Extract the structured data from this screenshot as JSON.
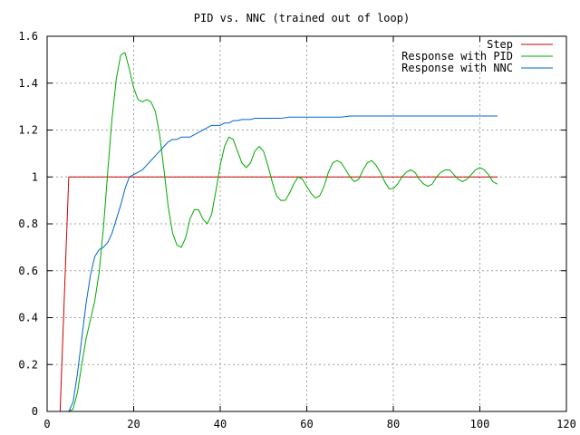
{
  "chart_data": {
    "type": "line",
    "title": "PID vs. NNC (trained out of loop)",
    "xlabel": "",
    "ylabel": "",
    "xlim": [
      0,
      120
    ],
    "ylim": [
      0,
      1.6
    ],
    "x_ticks": [
      0,
      20,
      40,
      60,
      80,
      100,
      120
    ],
    "y_ticks": [
      0,
      0.2,
      0.4,
      0.6,
      0.8,
      1,
      1.2,
      1.4,
      1.6
    ],
    "x_tick_labels": [
      "0",
      "20",
      "40",
      "60",
      "80",
      "100",
      "120"
    ],
    "y_tick_labels": [
      "0",
      "0.2",
      "0.4",
      "0.6",
      "0.8",
      "1",
      "1.2",
      "1.4",
      "1.6"
    ],
    "grid": true,
    "legend_position": "top-right",
    "series": [
      {
        "name": "Step",
        "color": "#cc0000",
        "points": [
          [
            3,
            0
          ],
          [
            4,
            0.5
          ],
          [
            5,
            1
          ],
          [
            20,
            1
          ],
          [
            40,
            1
          ],
          [
            60,
            1
          ],
          [
            80,
            1
          ],
          [
            100,
            1
          ],
          [
            104,
            1
          ]
        ]
      },
      {
        "name": "Response with PID",
        "color": "#00aa00",
        "points": [
          [
            3,
            0
          ],
          [
            4,
            0
          ],
          [
            5,
            0
          ],
          [
            6,
            0.01
          ],
          [
            7,
            0.08
          ],
          [
            8,
            0.2
          ],
          [
            9,
            0.31
          ],
          [
            10,
            0.39
          ],
          [
            11,
            0.47
          ],
          [
            12,
            0.59
          ],
          [
            13,
            0.78
          ],
          [
            14,
            1.02
          ],
          [
            15,
            1.25
          ],
          [
            16,
            1.42
          ],
          [
            17,
            1.52
          ],
          [
            18,
            1.53
          ],
          [
            19,
            1.46
          ],
          [
            20,
            1.38
          ],
          [
            21,
            1.33
          ],
          [
            22,
            1.32
          ],
          [
            23,
            1.33
          ],
          [
            24,
            1.32
          ],
          [
            25,
            1.28
          ],
          [
            26,
            1.18
          ],
          [
            27,
            1.03
          ],
          [
            28,
            0.87
          ],
          [
            29,
            0.76
          ],
          [
            30,
            0.71
          ],
          [
            31,
            0.7
          ],
          [
            32,
            0.74
          ],
          [
            33,
            0.82
          ],
          [
            34,
            0.86
          ],
          [
            35,
            0.86
          ],
          [
            36,
            0.82
          ],
          [
            37,
            0.8
          ],
          [
            38,
            0.84
          ],
          [
            39,
            0.94
          ],
          [
            40,
            1.05
          ],
          [
            41,
            1.13
          ],
          [
            42,
            1.17
          ],
          [
            43,
            1.16
          ],
          [
            44,
            1.11
          ],
          [
            45,
            1.06
          ],
          [
            46,
            1.04
          ],
          [
            47,
            1.06
          ],
          [
            48,
            1.11
          ],
          [
            49,
            1.13
          ],
          [
            50,
            1.11
          ],
          [
            51,
            1.05
          ],
          [
            52,
            0.98
          ],
          [
            53,
            0.92
          ],
          [
            54,
            0.9
          ],
          [
            55,
            0.9
          ],
          [
            56,
            0.93
          ],
          [
            57,
            0.97
          ],
          [
            58,
            1.0
          ],
          [
            59,
            0.99
          ],
          [
            60,
            0.96
          ],
          [
            61,
            0.93
          ],
          [
            62,
            0.91
          ],
          [
            63,
            0.92
          ],
          [
            64,
            0.96
          ],
          [
            65,
            1.02
          ],
          [
            66,
            1.06
          ],
          [
            67,
            1.07
          ],
          [
            68,
            1.06
          ],
          [
            69,
            1.03
          ],
          [
            70,
            1.0
          ],
          [
            71,
            0.98
          ],
          [
            72,
            0.99
          ],
          [
            73,
            1.03
          ],
          [
            74,
            1.06
          ],
          [
            75,
            1.07
          ],
          [
            76,
            1.05
          ],
          [
            77,
            1.02
          ],
          [
            78,
            0.98
          ],
          [
            79,
            0.95
          ],
          [
            80,
            0.95
          ],
          [
            81,
            0.97
          ],
          [
            82,
            1.0
          ],
          [
            83,
            1.02
          ],
          [
            84,
            1.03
          ],
          [
            85,
            1.02
          ],
          [
            86,
            0.99
          ],
          [
            87,
            0.97
          ],
          [
            88,
            0.96
          ],
          [
            89,
            0.97
          ],
          [
            90,
            1.0
          ],
          [
            91,
            1.02
          ],
          [
            92,
            1.03
          ],
          [
            93,
            1.03
          ],
          [
            94,
            1.01
          ],
          [
            95,
            0.99
          ],
          [
            96,
            0.98
          ],
          [
            97,
            0.99
          ],
          [
            98,
            1.01
          ],
          [
            99,
            1.03
          ],
          [
            100,
            1.04
          ],
          [
            101,
            1.03
          ],
          [
            102,
            1.01
          ],
          [
            103,
            0.98
          ],
          [
            104,
            0.97
          ]
        ]
      },
      {
        "name": "Response with NNC",
        "color": "#0066cc",
        "points": [
          [
            3,
            0
          ],
          [
            4,
            0
          ],
          [
            5,
            0
          ],
          [
            6,
            0.04
          ],
          [
            7,
            0.16
          ],
          [
            8,
            0.31
          ],
          [
            9,
            0.46
          ],
          [
            10,
            0.58
          ],
          [
            11,
            0.66
          ],
          [
            12,
            0.69
          ],
          [
            13,
            0.7
          ],
          [
            14,
            0.72
          ],
          [
            15,
            0.76
          ],
          [
            16,
            0.82
          ],
          [
            17,
            0.88
          ],
          [
            18,
            0.95
          ],
          [
            19,
            1.0
          ],
          [
            20,
            1.01
          ],
          [
            21,
            1.02
          ],
          [
            22,
            1.03
          ],
          [
            23,
            1.05
          ],
          [
            24,
            1.07
          ],
          [
            25,
            1.09
          ],
          [
            26,
            1.11
          ],
          [
            27,
            1.13
          ],
          [
            28,
            1.15
          ],
          [
            29,
            1.16
          ],
          [
            30,
            1.16
          ],
          [
            31,
            1.17
          ],
          [
            32,
            1.17
          ],
          [
            33,
            1.17
          ],
          [
            34,
            1.18
          ],
          [
            35,
            1.19
          ],
          [
            36,
            1.2
          ],
          [
            37,
            1.21
          ],
          [
            38,
            1.22
          ],
          [
            39,
            1.22
          ],
          [
            40,
            1.22
          ],
          [
            41,
            1.23
          ],
          [
            42,
            1.23
          ],
          [
            43,
            1.24
          ],
          [
            44,
            1.24
          ],
          [
            45,
            1.245
          ],
          [
            46,
            1.245
          ],
          [
            47,
            1.245
          ],
          [
            48,
            1.25
          ],
          [
            49,
            1.25
          ],
          [
            50,
            1.25
          ],
          [
            52,
            1.25
          ],
          [
            54,
            1.25
          ],
          [
            56,
            1.255
          ],
          [
            58,
            1.255
          ],
          [
            60,
            1.255
          ],
          [
            62,
            1.255
          ],
          [
            64,
            1.255
          ],
          [
            66,
            1.255
          ],
          [
            68,
            1.255
          ],
          [
            70,
            1.26
          ],
          [
            72,
            1.26
          ],
          [
            74,
            1.26
          ],
          [
            76,
            1.26
          ],
          [
            78,
            1.26
          ],
          [
            80,
            1.26
          ],
          [
            82,
            1.26
          ],
          [
            84,
            1.26
          ],
          [
            86,
            1.26
          ],
          [
            88,
            1.26
          ],
          [
            90,
            1.26
          ],
          [
            92,
            1.26
          ],
          [
            94,
            1.26
          ],
          [
            96,
            1.26
          ],
          [
            98,
            1.26
          ],
          [
            100,
            1.26
          ],
          [
            102,
            1.26
          ],
          [
            104,
            1.26
          ]
        ]
      }
    ]
  }
}
